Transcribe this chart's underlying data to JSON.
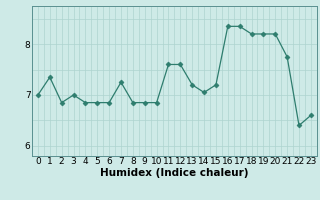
{
  "x": [
    0,
    1,
    2,
    3,
    4,
    5,
    6,
    7,
    8,
    9,
    10,
    11,
    12,
    13,
    14,
    15,
    16,
    17,
    18,
    19,
    20,
    21,
    22,
    23
  ],
  "y": [
    7.0,
    7.35,
    6.85,
    7.0,
    6.85,
    6.85,
    6.85,
    7.25,
    6.85,
    6.85,
    6.85,
    7.6,
    7.6,
    7.2,
    7.05,
    7.2,
    8.35,
    8.35,
    8.2,
    8.2,
    8.2,
    7.75,
    6.4,
    6.6
  ],
  "line_color": "#2e7d6e",
  "marker": "D",
  "marker_size": 2.5,
  "bg_color": "#ceeae7",
  "grid_color": "#aed4d0",
  "xlabel": "Humidex (Indice chaleur)",
  "ylim": [
    5.8,
    8.75
  ],
  "xlim": [
    -0.5,
    23.5
  ],
  "yticks": [
    6,
    7,
    8
  ],
  "xtick_labels": [
    "0",
    "1",
    "2",
    "3",
    "4",
    "5",
    "6",
    "7",
    "8",
    "9",
    "10",
    "11",
    "12",
    "13",
    "14",
    "15",
    "16",
    "17",
    "18",
    "19",
    "20",
    "21",
    "22",
    "23"
  ],
  "xlabel_fontsize": 7.5,
  "tick_fontsize": 6.5
}
